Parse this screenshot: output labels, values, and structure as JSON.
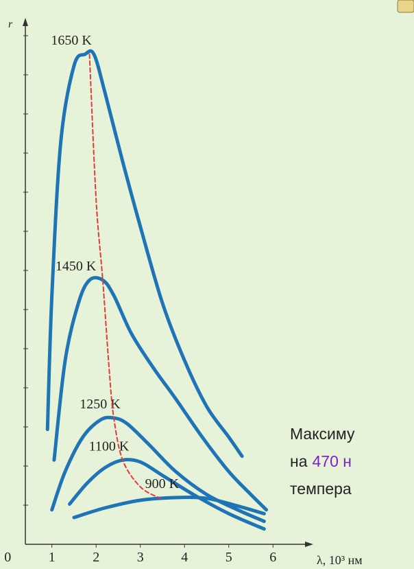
{
  "chart_data": {
    "type": "line",
    "y_label": "r",
    "x_label": "λ, 10³ нм",
    "xlim": [
      0.4,
      6.6
    ],
    "xticks": [
      0,
      1,
      2,
      3,
      4,
      5,
      6
    ],
    "ylim": [
      0,
      13.5
    ],
    "line_color": "#1f74b6",
    "series": [
      {
        "name": "1650 K",
        "x": [
          0.9,
          1.0,
          1.2,
          1.5,
          1.75,
          1.95,
          2.2,
          2.6,
          3.0,
          3.5,
          4.0,
          4.5,
          5.0,
          5.3
        ],
        "values": [
          3.0,
          6.5,
          10.5,
          12.5,
          12.8,
          12.8,
          11.8,
          10,
          8.3,
          6.3,
          4.8,
          3.6,
          2.8,
          2.3
        ]
      },
      {
        "name": "1450 K",
        "x": [
          1.05,
          1.3,
          1.6,
          1.85,
          2.15,
          2.4,
          2.8,
          3.3,
          3.8,
          4.4,
          5.0,
          5.5,
          5.85
        ],
        "values": [
          2.2,
          4.8,
          6.3,
          6.9,
          6.9,
          6.5,
          5.5,
          4.6,
          3.8,
          2.8,
          1.9,
          1.3,
          0.9
        ]
      },
      {
        "name": "1250 K",
        "x": [
          1.0,
          1.3,
          1.7,
          2.1,
          2.4,
          2.7,
          3.2,
          3.8,
          4.5,
          5.2,
          5.8
        ],
        "values": [
          0.9,
          1.9,
          2.8,
          3.25,
          3.3,
          3.15,
          2.6,
          1.9,
          1.3,
          0.9,
          0.6
        ]
      },
      {
        "name": "1100 K",
        "x": [
          1.4,
          1.8,
          2.2,
          2.6,
          3.0,
          3.5,
          4.2,
          5.0,
          5.8
        ],
        "values": [
          1.05,
          1.6,
          2.0,
          2.2,
          2.15,
          1.8,
          1.3,
          0.8,
          0.4
        ]
      },
      {
        "name": "900 K",
        "x": [
          1.5,
          2.2,
          3.0,
          3.8,
          4.5,
          5.2,
          5.8
        ],
        "values": [
          0.7,
          0.95,
          1.15,
          1.22,
          1.2,
          1.0,
          0.8
        ]
      }
    ],
    "peak_line": {
      "color": "#e23a3a",
      "x": [
        1.85,
        2.0,
        2.15,
        2.3,
        2.4,
        2.6,
        3.0,
        3.45
      ],
      "values": [
        12.8,
        9,
        6.9,
        4.5,
        3.3,
        2.2,
        1.5,
        1.2
      ]
    }
  },
  "caption": {
    "lines": [
      [
        "Максиму"
      ],
      [
        "на",
        "470 н"
      ],
      [
        "темпера"
      ]
    ]
  }
}
